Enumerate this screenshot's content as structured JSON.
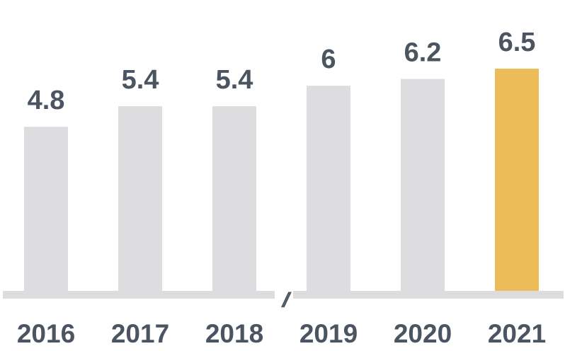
{
  "chart_data": {
    "type": "bar",
    "categories": [
      "2016",
      "2017",
      "2018",
      "2019",
      "2020",
      "2021"
    ],
    "values": [
      4.8,
      5.4,
      5.4,
      6,
      6.2,
      6.5
    ],
    "value_labels": [
      "4.8",
      "5.4",
      "5.4",
      "6",
      "6.2",
      "6.5"
    ],
    "highlight_index": 5,
    "axis_break_between": [
      2,
      3
    ],
    "axis_break_symbol": "//",
    "title": "",
    "xlabel": "",
    "ylabel": "",
    "grid": false,
    "legend": "none"
  },
  "colors": {
    "bar": "#dddddf",
    "highlight_bar": "#ebbc57",
    "baseline": "#dddddf",
    "text": "#4b5461"
  }
}
